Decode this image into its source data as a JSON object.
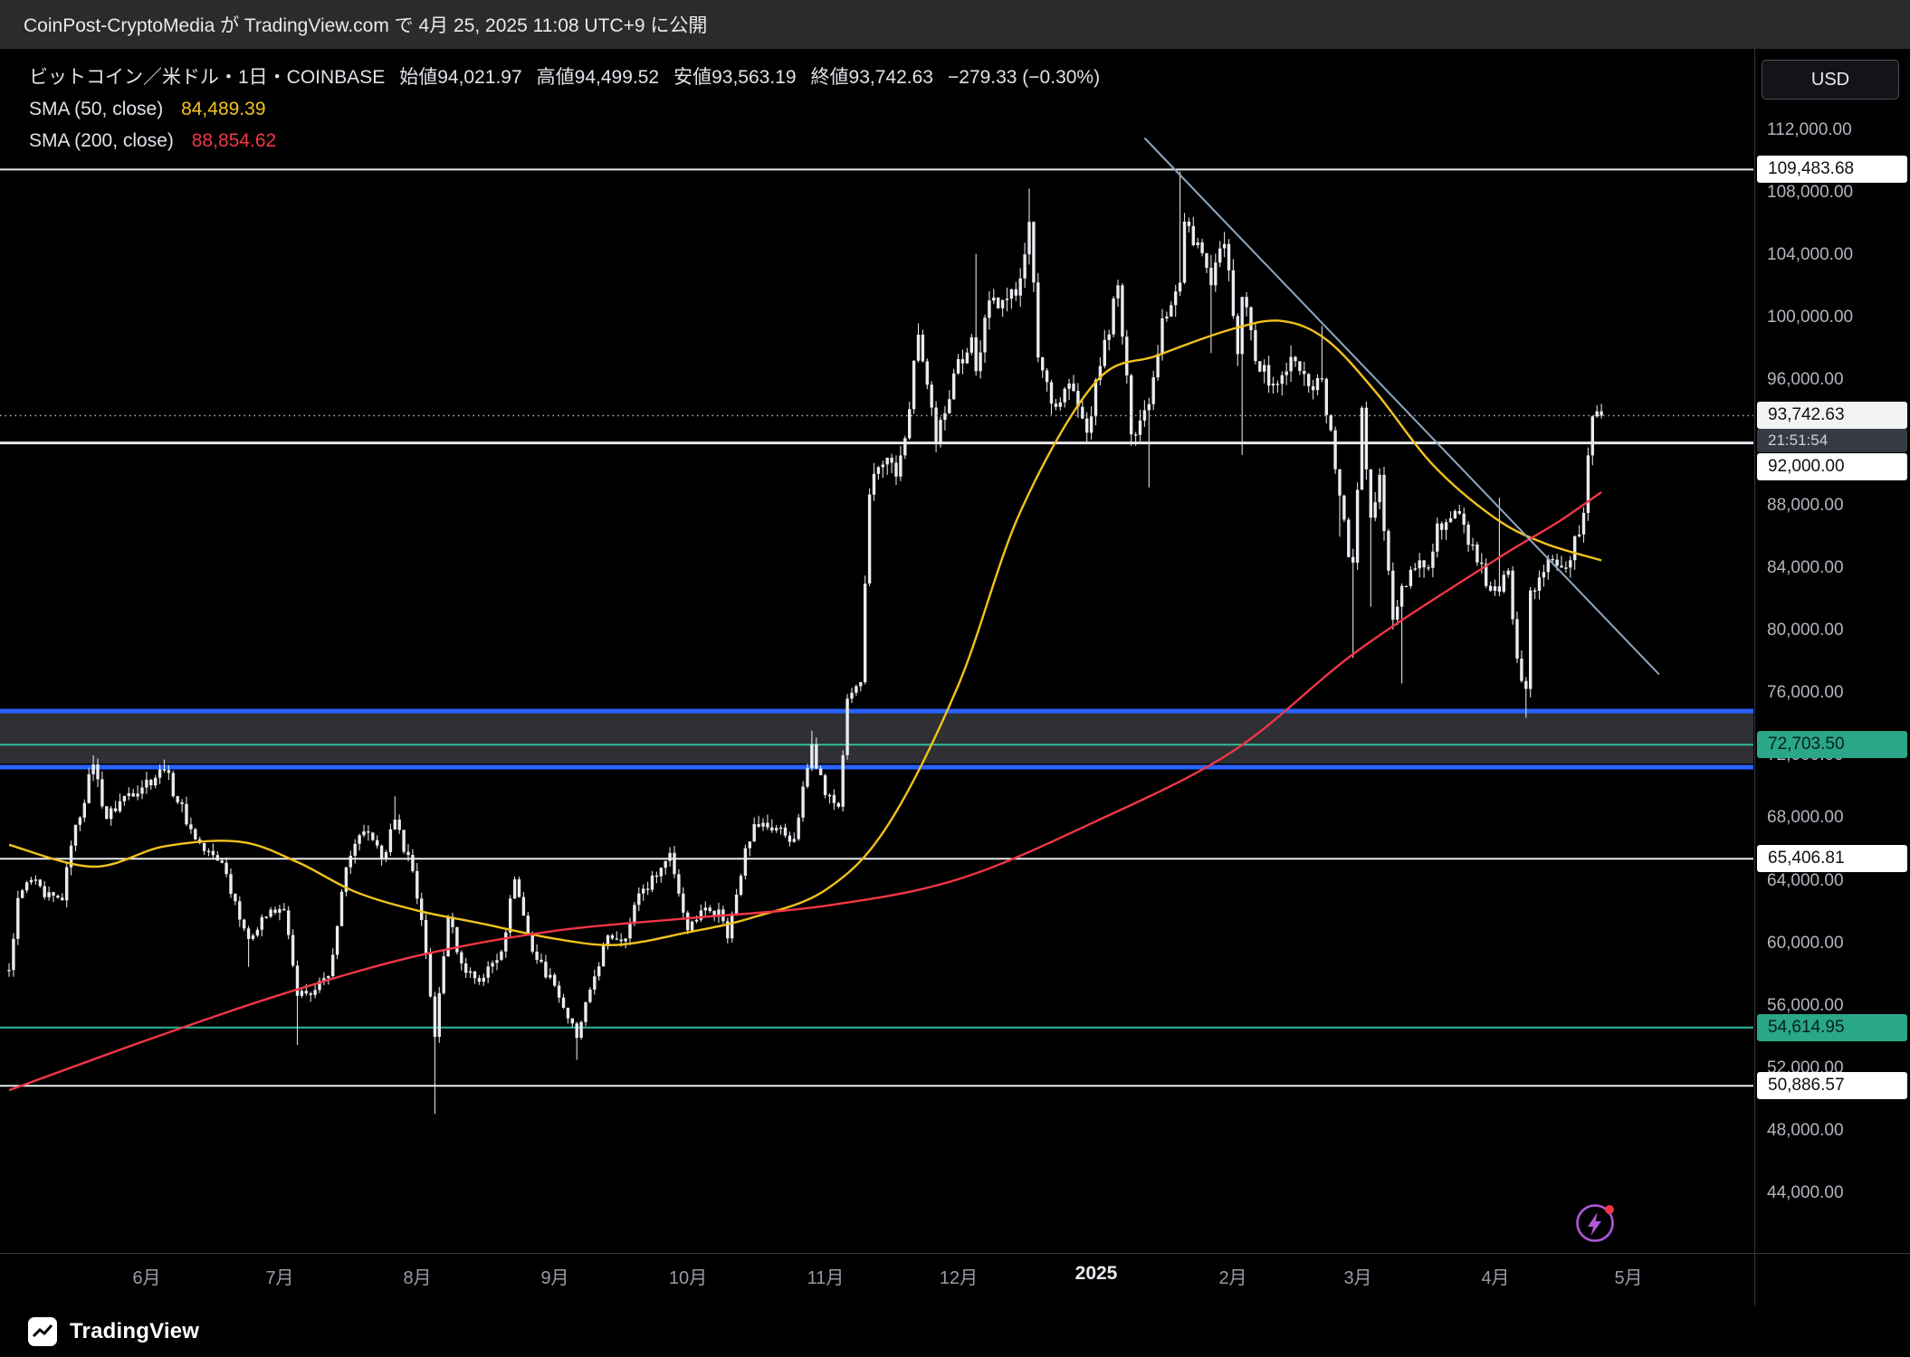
{
  "attribution": "CoinPost-CryptoMedia が TradingView.com で 4月 25, 2025 11:08 UTC+9 に公開",
  "legend": {
    "symbol": "ビットコイン／米ドル・1日・COINBASE",
    "ohlc": {
      "open_label": "始値",
      "open": "94,021.97",
      "high_label": "高値",
      "high": "94,499.52",
      "low_label": "安値",
      "low": "93,563.19",
      "close_label": "終値",
      "close": "93,742.63",
      "change": "−279.33 (−0.30%)"
    },
    "sma50": {
      "label": "SMA (50, close)",
      "value": "84,489.39",
      "color": "#f3c21c"
    },
    "sma200": {
      "label": "SMA (200, close)",
      "value": "88,854.62",
      "color": "#f23645"
    }
  },
  "axis": {
    "currency_button": "USD",
    "ticks": [
      {
        "label": "112,000.00",
        "value": 112000
      },
      {
        "label": "108,000.00",
        "value": 108000
      },
      {
        "label": "104,000.00",
        "value": 104000
      },
      {
        "label": "100,000.00",
        "value": 100000
      },
      {
        "label": "96,000.00",
        "value": 96000
      },
      {
        "label": "88,000.00",
        "value": 88000
      },
      {
        "label": "84,000.00",
        "value": 84000
      },
      {
        "label": "80,000.00",
        "value": 80000
      },
      {
        "label": "76,000.00",
        "value": 76000
      },
      {
        "label": "72,000.00",
        "value": 72000
      },
      {
        "label": "68,000.00",
        "value": 68000
      },
      {
        "label": "64,000.00",
        "value": 64000
      },
      {
        "label": "60,000.00",
        "value": 60000
      },
      {
        "label": "56,000.00",
        "value": 56000
      },
      {
        "label": "52,000.00",
        "value": 52000
      },
      {
        "label": "48,000.00",
        "value": 48000
      },
      {
        "label": "44,000.00",
        "value": 44000
      }
    ],
    "badges": [
      {
        "label": "109,483.68",
        "value": 109483.68,
        "bg": "#ffffff",
        "fg": "#111111",
        "dy": 0
      },
      {
        "label": "92,000.00",
        "value": 92000,
        "bg": "#ffffff",
        "fg": "#111111",
        "dy": 26
      },
      {
        "label": "72,703.50",
        "value": 72703.5,
        "bg": "#2aa688",
        "fg": "#06211a",
        "dy": 0
      },
      {
        "label": "65,406.81",
        "value": 65406.81,
        "bg": "#ffffff",
        "fg": "#111111",
        "dy": 0
      },
      {
        "label": "54,614.95",
        "value": 54614.95,
        "bg": "#2aa688",
        "fg": "#06211a",
        "dy": 0
      },
      {
        "label": "50,886.57",
        "value": 50886.57,
        "bg": "#ffffff",
        "fg": "#111111",
        "dy": 0
      }
    ],
    "current": {
      "label": "93,742.63",
      "value": 93742.63,
      "bg": "#f2f3f5",
      "fg": "#111111",
      "countdown": "21:51:54"
    }
  },
  "time_axis": {
    "months": [
      {
        "label": "6月",
        "date": "2024-06-01",
        "bold": false
      },
      {
        "label": "7月",
        "date": "2024-07-01",
        "bold": false
      },
      {
        "label": "8月",
        "date": "2024-08-01",
        "bold": false
      },
      {
        "label": "9月",
        "date": "2024-09-01",
        "bold": false
      },
      {
        "label": "10月",
        "date": "2024-10-01",
        "bold": false
      },
      {
        "label": "11月",
        "date": "2024-11-01",
        "bold": false
      },
      {
        "label": "12月",
        "date": "2024-12-01",
        "bold": false
      },
      {
        "label": "2025",
        "date": "2025-01-01",
        "bold": true
      },
      {
        "label": "2月",
        "date": "2025-02-01",
        "bold": false
      },
      {
        "label": "3月",
        "date": "2025-03-01",
        "bold": false
      },
      {
        "label": "4月",
        "date": "2025-04-01",
        "bold": false
      },
      {
        "label": "5月",
        "date": "2025-05-01",
        "bold": false
      }
    ]
  },
  "footer": {
    "brand": "TradingView"
  },
  "chart_data": {
    "type": "candlestick",
    "title": "ビットコイン／米ドル・1日・COINBASE",
    "ylabel": "USD",
    "ylim": [
      40200,
      117200
    ],
    "xlim": [
      "2024-05-01",
      "2025-05-12"
    ],
    "candle_color": "#e8ebf0",
    "last_candle": {
      "date": "2025-04-25",
      "open": 94021.97,
      "high": 94499.52,
      "low": 93563.19,
      "close": 93742.63
    },
    "anchors": [
      [
        "2024-05-01",
        58300,
        null,
        null
      ],
      [
        "2024-05-03",
        62900,
        null,
        null
      ],
      [
        "2024-05-06",
        64050,
        null,
        null
      ],
      [
        "2024-05-09",
        62950,
        null,
        null
      ],
      [
        "2024-05-13",
        62750,
        null,
        null
      ],
      [
        "2024-05-15",
        66250,
        null,
        null
      ],
      [
        "2024-05-20",
        71440,
        72020,
        null
      ],
      [
        "2024-05-23",
        67960,
        null,
        null
      ],
      [
        "2024-05-27",
        69420,
        null,
        null
      ],
      [
        "2024-06-05",
        71080,
        71750,
        null
      ],
      [
        "2024-06-11",
        67300,
        null,
        null
      ],
      [
        "2024-06-14",
        65900,
        null,
        null
      ],
      [
        "2024-06-18",
        65150,
        null,
        null
      ],
      [
        "2024-06-24",
        60280,
        null,
        58500
      ],
      [
        "2024-06-27",
        61680,
        null,
        null
      ],
      [
        "2024-07-02",
        62100,
        null,
        null
      ],
      [
        "2024-07-05",
        56640,
        null,
        53500
      ],
      [
        "2024-07-08",
        56700,
        null,
        null
      ],
      [
        "2024-07-12",
        57900,
        null,
        null
      ],
      [
        "2024-07-16",
        64870,
        null,
        null
      ],
      [
        "2024-07-20",
        67160,
        null,
        null
      ],
      [
        "2024-07-24",
        65370,
        null,
        null
      ],
      [
        "2024-07-27",
        67910,
        69400,
        null
      ],
      [
        "2024-07-31",
        64620,
        null,
        null
      ],
      [
        "2024-08-02",
        61490,
        null,
        null
      ],
      [
        "2024-08-05",
        54020,
        null,
        49100
      ],
      [
        "2024-08-08",
        61710,
        null,
        null
      ],
      [
        "2024-08-11",
        58720,
        null,
        null
      ],
      [
        "2024-08-15",
        57550,
        null,
        null
      ],
      [
        "2024-08-20",
        59480,
        null,
        null
      ],
      [
        "2024-08-23",
        64090,
        null,
        null
      ],
      [
        "2024-08-27",
        59470,
        null,
        null
      ],
      [
        "2024-09-01",
        57300,
        null,
        null
      ],
      [
        "2024-09-06",
        53960,
        null,
        52550
      ],
      [
        "2024-09-09",
        57040,
        null,
        null
      ],
      [
        "2024-09-13",
        60510,
        null,
        null
      ],
      [
        "2024-09-17",
        60310,
        null,
        null
      ],
      [
        "2024-09-20",
        63190,
        null,
        null
      ],
      [
        "2024-09-24",
        64290,
        null,
        null
      ],
      [
        "2024-09-27",
        65790,
        null,
        null
      ],
      [
        "2024-10-01",
        60840,
        null,
        null
      ],
      [
        "2024-10-04",
        62100,
        null,
        null
      ],
      [
        "2024-10-08",
        62160,
        null,
        null
      ],
      [
        "2024-10-10",
        60320,
        null,
        null
      ],
      [
        "2024-10-14",
        66080,
        null,
        null
      ],
      [
        "2024-10-16",
        67620,
        null,
        null
      ],
      [
        "2024-10-21",
        67370,
        null,
        null
      ],
      [
        "2024-10-25",
        66670,
        null,
        null
      ],
      [
        "2024-10-29",
        72720,
        73600,
        null
      ],
      [
        "2024-11-01",
        69480,
        null,
        null
      ],
      [
        "2024-11-04",
        68740,
        null,
        null
      ],
      [
        "2024-11-06",
        75650,
        null,
        null
      ],
      [
        "2024-11-09",
        76700,
        null,
        null
      ],
      [
        "2024-11-11",
        88700,
        null,
        null
      ],
      [
        "2024-11-13",
        90450,
        null,
        null
      ],
      [
        "2024-11-15",
        91050,
        null,
        null
      ],
      [
        "2024-11-17",
        89850,
        null,
        null
      ],
      [
        "2024-11-19",
        92300,
        null,
        null
      ],
      [
        "2024-11-22",
        98920,
        99650,
        null
      ],
      [
        "2024-11-26",
        91980,
        null,
        null
      ],
      [
        "2024-11-30",
        96450,
        null,
        null
      ],
      [
        "2024-12-04",
        98750,
        null,
        null
      ],
      [
        "2024-12-05",
        96590,
        104090,
        null
      ],
      [
        "2024-12-08",
        101110,
        null,
        null
      ],
      [
        "2024-12-11",
        101130,
        null,
        null
      ],
      [
        "2024-12-14",
        101420,
        null,
        null
      ],
      [
        "2024-12-17",
        106140,
        108270,
        null
      ],
      [
        "2024-12-19",
        97470,
        null,
        null
      ],
      [
        "2024-12-23",
        94300,
        null,
        null
      ],
      [
        "2024-12-26",
        95800,
        null,
        null
      ],
      [
        "2024-12-30",
        92650,
        null,
        null
      ],
      [
        "2025-01-02",
        96920,
        null,
        null
      ],
      [
        "2025-01-06",
        102080,
        null,
        null
      ],
      [
        "2025-01-09",
        92550,
        null,
        null
      ],
      [
        "2025-01-13",
        94480,
        null,
        89160
      ],
      [
        "2025-01-16",
        99960,
        null,
        null
      ],
      [
        "2025-01-20",
        102250,
        109360,
        null
      ],
      [
        "2025-01-21",
        106150,
        null,
        null
      ],
      [
        "2025-01-24",
        104820,
        null,
        null
      ],
      [
        "2025-01-27",
        102080,
        null,
        97750
      ],
      [
        "2025-01-30",
        104720,
        null,
        null
      ],
      [
        "2025-02-02",
        97680,
        null,
        null
      ],
      [
        "2025-02-03",
        101330,
        null,
        91230
      ],
      [
        "2025-02-07",
        96560,
        null,
        null
      ],
      [
        "2025-02-11",
        95780,
        null,
        null
      ],
      [
        "2025-02-14",
        97500,
        null,
        null
      ],
      [
        "2025-02-18",
        95630,
        null,
        null
      ],
      [
        "2025-02-21",
        96100,
        99480,
        null
      ],
      [
        "2025-02-25",
        88640,
        null,
        86000
      ],
      [
        "2025-02-27",
        84700,
        null,
        null
      ],
      [
        "2025-02-28",
        84350,
        null,
        78250
      ],
      [
        "2025-03-02",
        94250,
        null,
        null
      ],
      [
        "2025-03-04",
        87220,
        null,
        81530
      ],
      [
        "2025-03-06",
        89960,
        null,
        null
      ],
      [
        "2025-03-09",
        80700,
        null,
        null
      ],
      [
        "2025-03-11",
        82860,
        null,
        76620
      ],
      [
        "2025-03-14",
        83980,
        null,
        null
      ],
      [
        "2025-03-17",
        84010,
        null,
        null
      ],
      [
        "2025-03-19",
        86850,
        null,
        null
      ],
      [
        "2025-03-24",
        87480,
        null,
        null
      ],
      [
        "2025-03-28",
        84350,
        null,
        null
      ],
      [
        "2025-03-31",
        82550,
        null,
        null
      ],
      [
        "2025-04-02",
        82490,
        88500,
        null
      ],
      [
        "2025-04-04",
        83840,
        null,
        null
      ],
      [
        "2025-04-06",
        78210,
        null,
        null
      ],
      [
        "2025-04-08",
        76270,
        null,
        74420
      ],
      [
        "2025-04-09",
        82570,
        null,
        null
      ],
      [
        "2025-04-11",
        83400,
        null,
        null
      ],
      [
        "2025-04-14",
        84540,
        null,
        null
      ],
      [
        "2025-04-16",
        84030,
        null,
        null
      ],
      [
        "2025-04-18",
        84500,
        null,
        null
      ],
      [
        "2025-04-21",
        87520,
        null,
        null
      ],
      [
        "2025-04-22",
        91200,
        null,
        null
      ],
      [
        "2025-04-23",
        93700,
        null,
        null
      ],
      [
        "2025-04-24",
        94022,
        null,
        null
      ],
      [
        "2025-04-25",
        93742.63,
        94499.52,
        93563.19
      ]
    ],
    "sma50": {
      "color": "#f3c21c",
      "points": [
        [
          "2024-05-01",
          66300
        ],
        [
          "2024-05-20",
          64900
        ],
        [
          "2024-06-05",
          66200
        ],
        [
          "2024-06-22",
          66500
        ],
        [
          "2024-07-05",
          65200
        ],
        [
          "2024-07-18",
          63300
        ],
        [
          "2024-08-01",
          62100
        ],
        [
          "2024-08-15",
          61300
        ],
        [
          "2024-09-01",
          60300
        ],
        [
          "2024-09-15",
          59900
        ],
        [
          "2024-10-01",
          60700
        ],
        [
          "2024-10-15",
          61600
        ],
        [
          "2024-11-01",
          63400
        ],
        [
          "2024-11-15",
          67500
        ],
        [
          "2024-12-01",
          76500
        ],
        [
          "2024-12-15",
          87600
        ],
        [
          "2025-01-01",
          95900
        ],
        [
          "2025-01-15",
          97600
        ],
        [
          "2025-02-01",
          99300
        ],
        [
          "2025-02-12",
          99800
        ],
        [
          "2025-02-22",
          98600
        ],
        [
          "2025-03-05",
          95300
        ],
        [
          "2025-03-18",
          90600
        ],
        [
          "2025-04-01",
          87200
        ],
        [
          "2025-04-12",
          85600
        ],
        [
          "2025-04-25",
          84489.39
        ]
      ]
    },
    "sma200": {
      "color": "#f23645",
      "points": [
        [
          "2024-05-01",
          50600
        ],
        [
          "2024-06-01",
          53800
        ],
        [
          "2024-07-01",
          56700
        ],
        [
          "2024-08-01",
          59200
        ],
        [
          "2024-09-01",
          60800
        ],
        [
          "2024-10-01",
          61600
        ],
        [
          "2024-11-01",
          62400
        ],
        [
          "2024-12-01",
          64100
        ],
        [
          "2025-01-01",
          67800
        ],
        [
          "2025-02-01",
          72300
        ],
        [
          "2025-03-01",
          78700
        ],
        [
          "2025-04-01",
          84500
        ],
        [
          "2025-04-15",
          86900
        ],
        [
          "2025-04-25",
          88854.62
        ]
      ]
    },
    "trendline": {
      "color": "#8fa8c2",
      "from": [
        "2025-01-12",
        111500
      ],
      "to": [
        "2025-05-08",
        77200
      ]
    },
    "levels": [
      {
        "price": 109483.68,
        "color": "#e9eaec",
        "width": 2
      },
      {
        "price": 92000,
        "color": "#e9eaec",
        "width": 3
      },
      {
        "price": 74855,
        "color": "#2962ff",
        "width": 5
      },
      {
        "price": 71263,
        "color": "#2962ff",
        "width": 5
      },
      {
        "price": 72703.5,
        "color": "#2fae92",
        "width": 2.2
      },
      {
        "price": 65406.81,
        "color": "#e9eaec",
        "width": 2
      },
      {
        "price": 54614.95,
        "color": "#2fae92",
        "width": 2.2
      },
      {
        "price": 50886.57,
        "color": "#e9eaec",
        "width": 2
      }
    ],
    "band": {
      "top": 74750,
      "bottom": 71500,
      "color": "rgba(168,173,184,0.28)"
    },
    "price_line": {
      "price": 93742.63,
      "color": "#b9bec8"
    }
  }
}
